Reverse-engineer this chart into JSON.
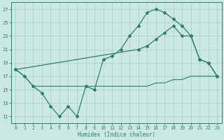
{
  "line1_x": [
    0,
    1,
    2,
    3,
    4,
    5,
    6,
    7,
    8,
    9,
    10,
    11,
    12,
    13,
    14,
    15,
    16,
    17,
    18,
    19,
    20,
    21,
    22,
    23
  ],
  "line1_y": [
    18,
    17,
    15.5,
    14.5,
    12.5,
    11,
    12.5,
    11,
    15.5,
    15,
    19.5,
    20,
    21,
    23,
    24.5,
    26.5,
    27,
    26.5,
    25.5,
    24.5,
    23,
    19.5,
    19,
    17
  ],
  "line2_x": [
    0,
    14,
    15,
    16,
    17,
    18,
    19,
    20,
    21,
    22,
    23
  ],
  "line2_y": [
    18,
    21,
    21.5,
    22.5,
    23.5,
    24.5,
    23,
    23,
    19.5,
    19,
    17
  ],
  "line3_x": [
    0,
    1,
    2,
    3,
    4,
    5,
    6,
    7,
    8,
    9,
    10,
    11,
    12,
    13,
    14,
    15,
    16,
    17,
    18,
    19,
    20,
    21,
    22,
    23
  ],
  "line3_y": [
    18,
    17,
    15.5,
    15.5,
    15.5,
    15.5,
    15.5,
    15.5,
    15.5,
    15.5,
    15.5,
    15.5,
    15.5,
    15.5,
    15.5,
    15.5,
    16,
    16,
    16.5,
    16.5,
    17,
    17,
    17,
    17
  ],
  "color": "#2e7d6e",
  "bg_color": "#cce8e4",
  "grid_color": "#aed4cf",
  "xlabel": "Humidex (Indice chaleur)",
  "ylim": [
    10,
    28
  ],
  "xlim": [
    -0.5,
    23.5
  ],
  "yticks": [
    11,
    13,
    15,
    17,
    19,
    21,
    23,
    25,
    27
  ],
  "xticks": [
    0,
    1,
    2,
    3,
    4,
    5,
    6,
    7,
    8,
    9,
    10,
    11,
    12,
    13,
    14,
    15,
    16,
    17,
    18,
    19,
    20,
    21,
    22,
    23
  ]
}
